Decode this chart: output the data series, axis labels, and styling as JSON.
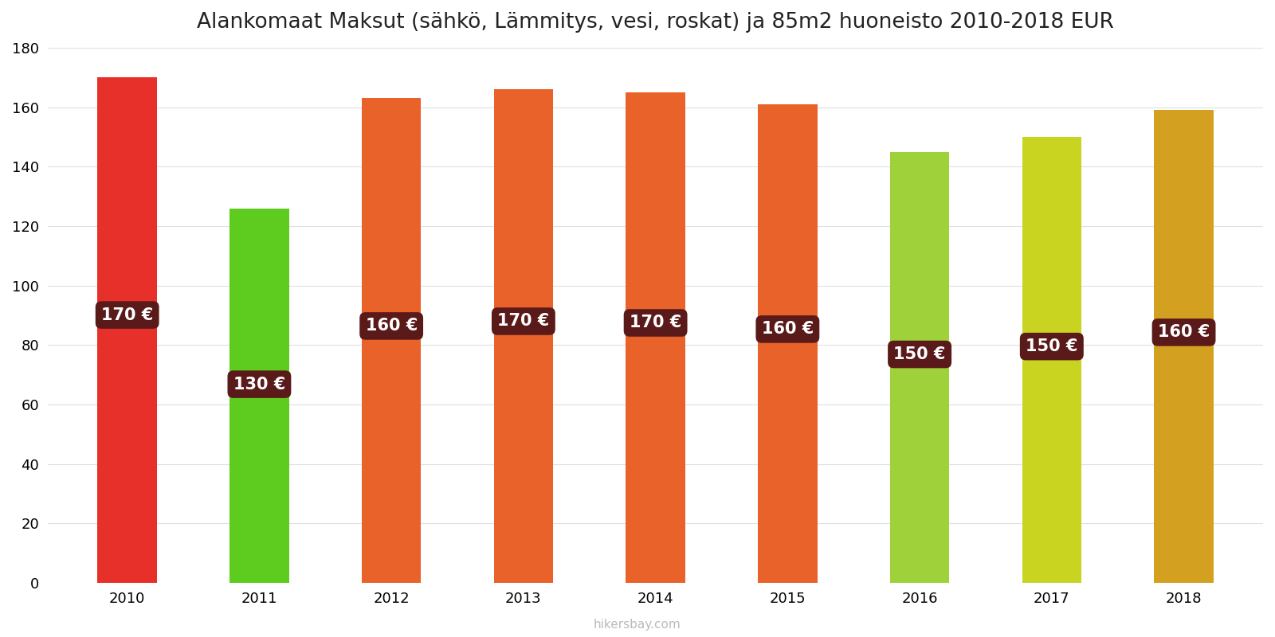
{
  "title": "Alankomaat Maksut (sähkö, Lämmitys, vesi, roskat) ja 85m2 huoneisto 2010-2018 EUR",
  "years": [
    2010,
    2011,
    2012,
    2013,
    2014,
    2015,
    2016,
    2017,
    2018
  ],
  "values": [
    170,
    130,
    160,
    170,
    170,
    160,
    150,
    150,
    160
  ],
  "bar_heights": [
    170,
    126,
    163,
    166,
    165,
    161,
    145,
    150,
    159
  ],
  "bar_colors": [
    "#e8302a",
    "#5dcc1e",
    "#e8622a",
    "#e8622a",
    "#e8622a",
    "#e8622a",
    "#9fd13a",
    "#c8d420",
    "#d4a020"
  ],
  "label_bg_color": "#5a1a1a",
  "label_text_color": "#ffffff",
  "ylim": [
    0,
    180
  ],
  "yticks": [
    0,
    20,
    40,
    60,
    80,
    100,
    120,
    140,
    160,
    180
  ],
  "background_color": "#ffffff",
  "grid_color": "#e0e0e0",
  "watermark": "hikersbay.com",
  "title_fontsize": 19,
  "tick_fontsize": 13,
  "label_fontsize": 15,
  "bar_width": 0.45
}
